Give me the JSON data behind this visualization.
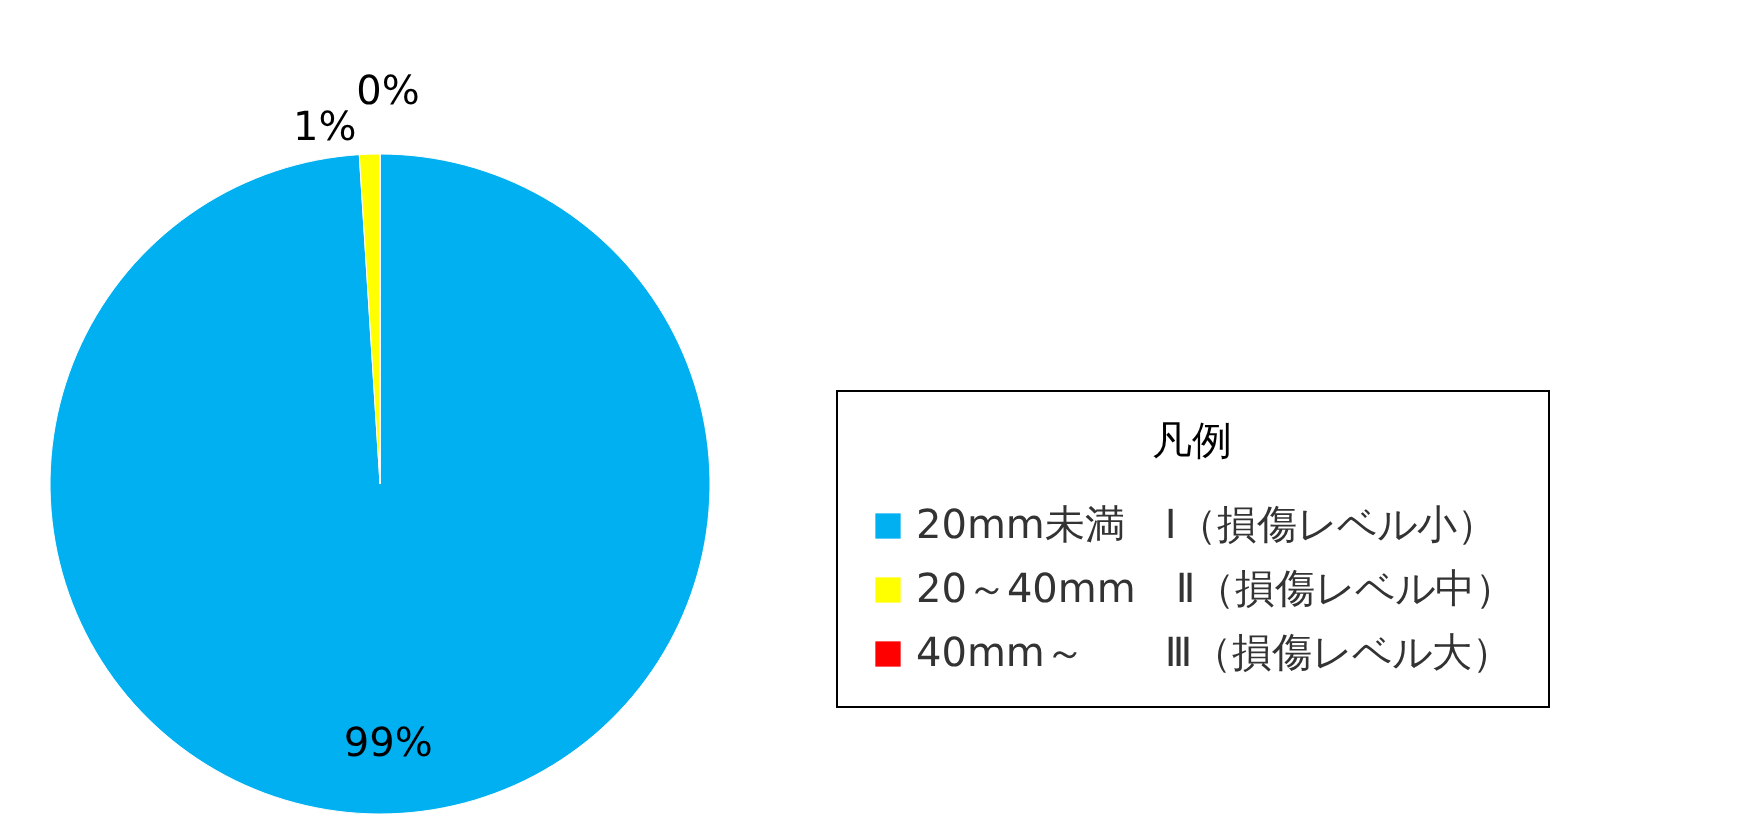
{
  "chart_data": {
    "type": "pie",
    "categories": [
      "20mm未満　Ⅰ（損傷レベル小）",
      "20～40mm　Ⅱ（損傷レベル中）",
      "40mm～　　Ⅲ（損傷レベル大）"
    ],
    "values": [
      99,
      1,
      0
    ],
    "colors": [
      "#00b0f0",
      "#ffff00",
      "#ff0000"
    ],
    "value_labels": [
      "99%",
      "1%",
      "0%"
    ],
    "legend_title": "凡例",
    "legend": "bottom right"
  }
}
